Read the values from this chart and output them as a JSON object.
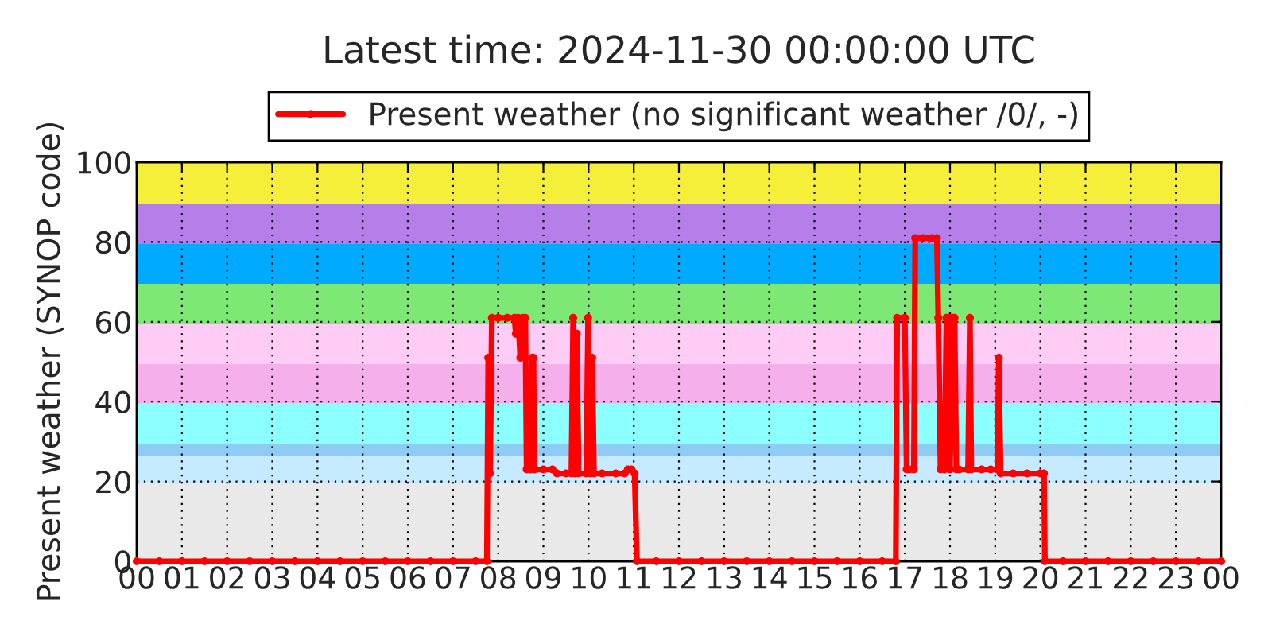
{
  "chart_data": {
    "type": "line",
    "title": "Latest time: 2024-11-30 00:00:00 UTC",
    "ylabel": "Present weather (SYNOP code)",
    "x": [
      0,
      0.5,
      1,
      1.5,
      2,
      2.5,
      3,
      3.5,
      4,
      4.5,
      5,
      5.5,
      6,
      6.5,
      7,
      7.5,
      7.75,
      7.78,
      7.82,
      7.86,
      8.0,
      8.2,
      8.36,
      8.39,
      8.44,
      8.49,
      8.54,
      8.6,
      8.63,
      8.72,
      8.75,
      8.78,
      8.8,
      9.0,
      9.2,
      9.3,
      9.5,
      9.62,
      9.66,
      9.7,
      9.74,
      9.78,
      9.95,
      9.99,
      10.04,
      10.08,
      10.12,
      10.3,
      10.6,
      10.8,
      10.87,
      10.95,
      11.02,
      11.07,
      11.5,
      12,
      12.5,
      13,
      13.5,
      14,
      14.5,
      15,
      15.5,
      16,
      16.5,
      16.8,
      16.83,
      17.0,
      17.04,
      17.1,
      17.2,
      17.23,
      17.4,
      17.6,
      17.71,
      17.74,
      17.79,
      17.88,
      17.92,
      17.97,
      18.0,
      18.05,
      18.1,
      18.14,
      18.2,
      18.4,
      18.44,
      18.47,
      18.7,
      18.9,
      19.05,
      19.08,
      19.12,
      19.4,
      19.7,
      20.0,
      20.08,
      20.1,
      20.5,
      21,
      21.5,
      22,
      22.5,
      23,
      23.5,
      24
    ],
    "series": [
      {
        "name": "Present weather (no significant weather /0/, -)",
        "color": "#ff0000",
        "values": [
          0,
          0,
          0,
          0,
          0,
          0,
          0,
          0,
          0,
          0,
          0,
          0,
          0,
          0,
          0,
          0,
          0,
          51,
          22,
          61,
          61,
          61,
          61,
          57,
          61,
          51,
          61,
          61,
          23,
          23,
          51,
          51,
          23,
          23,
          23,
          22,
          22,
          22,
          61,
          22,
          57,
          22,
          22,
          61,
          22,
          51,
          22,
          22,
          22,
          22,
          23,
          23,
          22,
          0,
          0,
          0,
          0,
          0,
          0,
          0,
          0,
          0,
          0,
          0,
          0,
          0,
          61,
          61,
          23,
          23,
          23,
          81,
          81,
          81,
          81,
          61,
          23,
          23,
          61,
          61,
          23,
          61,
          61,
          23,
          23,
          23,
          61,
          23,
          23,
          23,
          23,
          51,
          22,
          22,
          22,
          22,
          22,
          0,
          0,
          0,
          0,
          0,
          0,
          0,
          0,
          0
        ]
      }
    ],
    "xlim": [
      0,
      24
    ],
    "ylim": [
      0,
      100
    ],
    "xticks": [
      {
        "value": 0,
        "label": "00"
      },
      {
        "value": 1,
        "label": "01"
      },
      {
        "value": 2,
        "label": "02"
      },
      {
        "value": 3,
        "label": "03"
      },
      {
        "value": 4,
        "label": "04"
      },
      {
        "value": 5,
        "label": "05"
      },
      {
        "value": 6,
        "label": "06"
      },
      {
        "value": 7,
        "label": "07"
      },
      {
        "value": 8,
        "label": "08"
      },
      {
        "value": 9,
        "label": "09"
      },
      {
        "value": 10,
        "label": "10"
      },
      {
        "value": 11,
        "label": "11"
      },
      {
        "value": 12,
        "label": "12"
      },
      {
        "value": 13,
        "label": "13"
      },
      {
        "value": 14,
        "label": "14"
      },
      {
        "value": 15,
        "label": "15"
      },
      {
        "value": 16,
        "label": "16"
      },
      {
        "value": 17,
        "label": "17"
      },
      {
        "value": 18,
        "label": "18"
      },
      {
        "value": 19,
        "label": "19"
      },
      {
        "value": 20,
        "label": "20"
      },
      {
        "value": 21,
        "label": "21"
      },
      {
        "value": 22,
        "label": "22"
      },
      {
        "value": 23,
        "label": "23"
      },
      {
        "value": 24,
        "label": "00"
      }
    ],
    "yticks": [
      0,
      20,
      40,
      60,
      80,
      100
    ],
    "bands": [
      {
        "axis": "y",
        "from": 0,
        "to": 19.5,
        "color": "#e9e9e9"
      },
      {
        "axis": "y",
        "from": 19.5,
        "to": 26.5,
        "color": "#c6eaff"
      },
      {
        "axis": "y",
        "from": 26.5,
        "to": 29.5,
        "color": "#8ecbf5"
      },
      {
        "axis": "y",
        "from": 29.5,
        "to": 39.5,
        "color": "#8cffff"
      },
      {
        "axis": "y",
        "from": 39.5,
        "to": 49.5,
        "color": "#f5b0ec"
      },
      {
        "axis": "y",
        "from": 49.5,
        "to": 59.5,
        "color": "#ffccf5"
      },
      {
        "axis": "y",
        "from": 59.5,
        "to": 69.5,
        "color": "#7ee874"
      },
      {
        "axis": "y",
        "from": 69.5,
        "to": 79.5,
        "color": "#00aaff"
      },
      {
        "axis": "y",
        "from": 79.5,
        "to": 89.5,
        "color": "#b57ee9"
      },
      {
        "axis": "y",
        "from": 89.5,
        "to": 100,
        "color": "#f5ef3a"
      }
    ],
    "grid": true,
    "legend": "top",
    "marker": "circle",
    "line_style": "solid"
  }
}
